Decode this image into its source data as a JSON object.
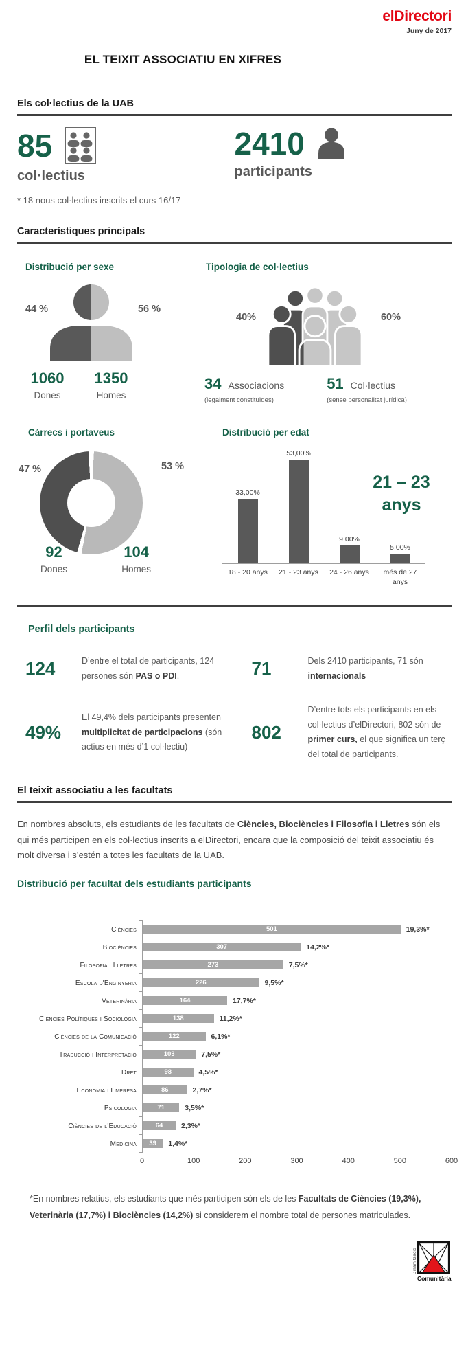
{
  "page": {
    "brand": "elDirectori",
    "date": "Juny de 2017",
    "title": "EL TEIXIT ASSOCIATIU EN XIFRES"
  },
  "colors": {
    "green": "#166149",
    "red": "#e30613",
    "dark_gray": "#595959",
    "light_gray": "#bfbfbf",
    "bar_gray": "#a6a6a6"
  },
  "collectius": {
    "heading": "Els col·lectius de la UAB",
    "stat1_value": "85",
    "stat1_label": "col·lectius",
    "stat2_value": "2410",
    "stat2_label": "participants",
    "note": "* 18 nous col·lectius inscrits el curs 16/17"
  },
  "caracteristiques": {
    "heading": "Característiques principals"
  },
  "perfil": {
    "heading": "Perfil dels participants",
    "stats": [
      {
        "value": "124",
        "text": [
          {
            "t": "D’entre el total de participants, 124 persones són "
          },
          {
            "t": "PAS o PDI",
            "b": true
          },
          {
            "t": "."
          }
        ]
      },
      {
        "value": "71",
        "text": [
          {
            "t": "Dels 2410 participants, 71 són "
          },
          {
            "t": "internacionals",
            "b": true
          }
        ]
      },
      {
        "value": "49%",
        "text": [
          {
            "t": "El 49,4% dels participants presenten "
          },
          {
            "t": "multiplicitat de participacions",
            "b": true
          },
          {
            "t": " (són actius en més d’1 col·lectiu)"
          }
        ]
      },
      {
        "value": "802",
        "text": [
          {
            "t": "D’entre tots els participants en els col·lectius d’elDirectori, 802 són de "
          },
          {
            "t": "primer curs,",
            "b": true
          },
          {
            "t": " el que significa un terç del total de participants."
          }
        ]
      }
    ]
  },
  "facultats": {
    "heading": "El teixit associatiu a les facultats",
    "intro": [
      {
        "t": "En nombres absoluts, els estudiants de les facultats de "
      },
      {
        "t": "Ciències, Biociències i Filosofia i Lletres",
        "b": true
      },
      {
        "t": " són els qui més participen en els col·lectius inscrits a elDirectori, encara que la composició del teixit associatiu és molt diversa i s’estén a totes les facultats de la UAB."
      }
    ],
    "chart_title": "Distribució per facultat dels estudiants participants",
    "footnote": [
      {
        "t": "*En nombres relatius, els estudiants que més participen són els de les "
      },
      {
        "t": "Facultats de Ciències (19,3%), Veterinària (17,7%) i Biociències (14,2%)",
        "b": true
      },
      {
        "t": " si considerem el nombre total de persones matriculades."
      }
    ]
  },
  "footer": {
    "logo_line1": "Dinamització",
    "logo_line2": "Comunitària"
  },
  "chart_data": [
    {
      "id": "sexe",
      "type": "pictograph",
      "title": "Distribució per sexe",
      "categories": [
        "Dones",
        "Homes"
      ],
      "values": [
        1060,
        1350
      ],
      "pct": [
        "44 %",
        "56 %"
      ]
    },
    {
      "id": "tipologia",
      "type": "pictograph",
      "title": "Tipologia de col·lectius",
      "categories": [
        "Associacions",
        "Col·lectius"
      ],
      "subs": [
        "(legalment constituïdes)",
        "(sense personalitat jurídica)"
      ],
      "values": [
        34,
        51
      ],
      "pct": [
        "40%",
        "60%"
      ]
    },
    {
      "id": "carrecs",
      "type": "donut",
      "title": "Càrrecs i portaveus",
      "categories": [
        "Dones",
        "Homes"
      ],
      "values": [
        92,
        104
      ],
      "pct": [
        "47 %",
        "53 %"
      ]
    },
    {
      "id": "edat",
      "type": "bar",
      "title": "Distribució per edat",
      "categories": [
        "18 - 20 anys",
        "21 - 23 anys",
        "24 - 26 anys",
        "més de 27 anys"
      ],
      "values": [
        33,
        53,
        9,
        5
      ],
      "value_labels": [
        "33,00%",
        "53,00%",
        "9,00%",
        "5,00%"
      ],
      "ylim": [
        0,
        55
      ],
      "grid": false,
      "bar_color": "#595959",
      "annotation_lines": [
        "21 – 23",
        "anys"
      ]
    },
    {
      "id": "facultats",
      "type": "bar-horizontal",
      "title": "Distribució per facultat dels estudiants participants",
      "categories": [
        "Ciències",
        "Biociències",
        "Filosofia i Lletres",
        "Escola d'Enginyeria",
        "Veterinària",
        "Ciències Polítiques i Sociologia",
        "Ciències de la Comunicació",
        "Traducció i Interpretació",
        "Dret",
        "Economia i Empresa",
        "Psicologia",
        "Ciències de l'Educació",
        "Medicina"
      ],
      "values": [
        501,
        307,
        273,
        226,
        164,
        138,
        122,
        103,
        98,
        86,
        71,
        64,
        39
      ],
      "pct_labels": [
        "19,3%*",
        "14,2%*",
        "7,5%*",
        "9,5%*",
        "17,7%*",
        "11,2%*",
        "6,1%*",
        "7,5%*",
        "4,5%*",
        "2,7%*",
        "3,5%*",
        "2,3%*",
        "1,4%*"
      ],
      "xlim": [
        0,
        600
      ],
      "x_ticks": [
        "0",
        "100",
        "200",
        "300",
        "400",
        "500",
        "600"
      ],
      "bar_color": "#a6a6a6"
    }
  ]
}
